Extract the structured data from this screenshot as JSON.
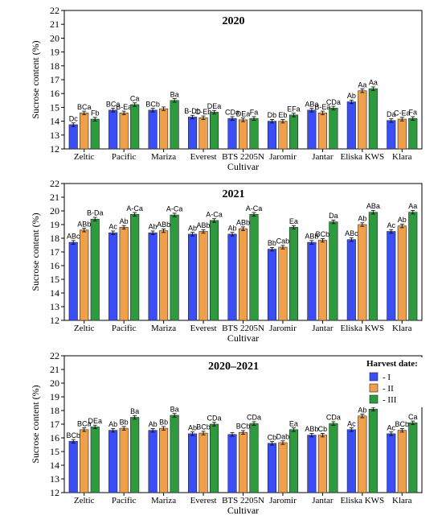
{
  "figure": {
    "legend": {
      "title": "Harvest date:",
      "placement": "top-right-of-bottom-panel",
      "entries": [
        {
          "label": "- I",
          "color": "#3b4ef5"
        },
        {
          "label": "- II",
          "color": "#f0a04a"
        },
        {
          "label": "- III",
          "color": "#2e9a3e"
        }
      ]
    },
    "colors": {
      "I": "#3b4ef5",
      "II": "#f0a04a",
      "III": "#2e9a3e",
      "label": "#000000"
    }
  },
  "chart_data": [
    {
      "type": "bar",
      "title": "2020",
      "xlabel": "Cultivar",
      "ylabel": "Sucrose content (%)",
      "ylim": [
        12,
        22
      ],
      "yticks": [
        12,
        13,
        14,
        15,
        16,
        17,
        18,
        19,
        20,
        21,
        22
      ],
      "grid": false,
      "categories": [
        "Zeltic",
        "Pacific",
        "Mariza",
        "Everest",
        "BTS 2205N",
        "Jaromir",
        "Jantar",
        "Eliska KWS",
        "Klara"
      ],
      "series": [
        {
          "name": "I",
          "values": [
            13.75,
            14.8,
            14.8,
            14.3,
            14.2,
            14.0,
            14.8,
            15.4,
            14.05
          ],
          "labels": [
            "Dc",
            "BCa",
            "BCb",
            "B-Db",
            "CDa",
            "Db",
            "ABa",
            "Ab",
            "Da"
          ]
        },
        {
          "name": "II",
          "values": [
            14.6,
            14.6,
            14.9,
            14.25,
            14.1,
            14.0,
            14.6,
            16.2,
            14.15
          ],
          "labels": [
            "BCa",
            "B-Ea",
            "",
            "C-Eb",
            "DEa",
            "Eb",
            "B-Ea",
            "Aa",
            "C-Ea"
          ]
        },
        {
          "name": "III",
          "values": [
            14.15,
            15.2,
            15.5,
            14.65,
            14.2,
            14.45,
            14.95,
            16.35,
            14.2
          ],
          "labels": [
            "Fb",
            "Ca",
            "Ba",
            "DEa",
            "Fa",
            "EFa",
            "CDa",
            "Aa",
            "Fa"
          ]
        }
      ]
    },
    {
      "type": "bar",
      "title": "2021",
      "xlabel": "Cultivar",
      "ylabel": "Sucrose content (%)",
      "ylim": [
        12,
        22
      ],
      "yticks": [
        12,
        13,
        14,
        15,
        16,
        17,
        18,
        19,
        20,
        21,
        22
      ],
      "grid": false,
      "categories": [
        "Zeltic",
        "Pacific",
        "Mariza",
        "Everest",
        "BTS 2205N",
        "Jaromir",
        "Jantar",
        "Eliska KWS",
        "Klara"
      ],
      "series": [
        {
          "name": "I",
          "values": [
            17.7,
            18.4,
            18.4,
            18.3,
            18.3,
            17.2,
            17.7,
            17.9,
            18.5
          ],
          "labels": [
            "ABc",
            "Ac",
            "Ab",
            "Ab",
            "Ab",
            "Bb",
            "ABb",
            "ABc",
            "Ac"
          ]
        },
        {
          "name": "II",
          "values": [
            18.6,
            18.8,
            18.55,
            18.5,
            18.7,
            17.35,
            17.85,
            19.0,
            18.9
          ],
          "labels": [
            "ABb",
            "Ab",
            "ABb",
            "ABb",
            "ABb",
            "Cab",
            "BCb",
            "Ab",
            "Ab"
          ]
        },
        {
          "name": "III",
          "values": [
            19.4,
            19.75,
            19.7,
            19.3,
            19.75,
            18.8,
            19.2,
            19.9,
            19.9
          ],
          "labels": [
            "B-Da",
            "A-Ca",
            "A-Ca",
            "A-Ca",
            "A-Ca",
            "Ea",
            "Da",
            "ABa",
            "Aa"
          ]
        }
      ]
    },
    {
      "type": "bar",
      "title": "2020–2021",
      "xlabel": "Cultivar",
      "ylabel": "Sucrose content (%)",
      "ylim": [
        12,
        22
      ],
      "yticks": [
        12,
        13,
        14,
        15,
        16,
        17,
        18,
        19,
        20,
        21,
        22
      ],
      "grid": false,
      "categories": [
        "Zeltic",
        "Pacific",
        "Mariza",
        "Everest",
        "BTS 2205N",
        "Jaromir",
        "Jantar",
        "Eliska KWS",
        "Klara"
      ],
      "series": [
        {
          "name": "I",
          "values": [
            15.75,
            16.55,
            16.55,
            16.3,
            16.25,
            15.6,
            16.2,
            16.6,
            16.3
          ],
          "labels": [
            "BCb",
            "Ab",
            "Ab",
            "Ab",
            "",
            "Cb",
            "ABb",
            "Ac",
            "Ac"
          ]
        },
        {
          "name": "II",
          "values": [
            16.6,
            16.7,
            16.7,
            16.35,
            16.4,
            15.65,
            16.2,
            17.6,
            16.55
          ],
          "labels": [
            "BCa",
            "Bb",
            "Bb",
            "BCb",
            "BCb",
            "Dab",
            "Cb",
            "Ab",
            "BCb"
          ]
        },
        {
          "name": "III",
          "values": [
            16.8,
            17.5,
            17.65,
            17.0,
            17.05,
            16.6,
            17.05,
            18.1,
            17.1
          ],
          "labels": [
            "DEa",
            "Ba",
            "Ba",
            "CDa",
            "CDa",
            "Ea",
            "CDa",
            "Aa",
            "Ca"
          ]
        }
      ]
    }
  ]
}
